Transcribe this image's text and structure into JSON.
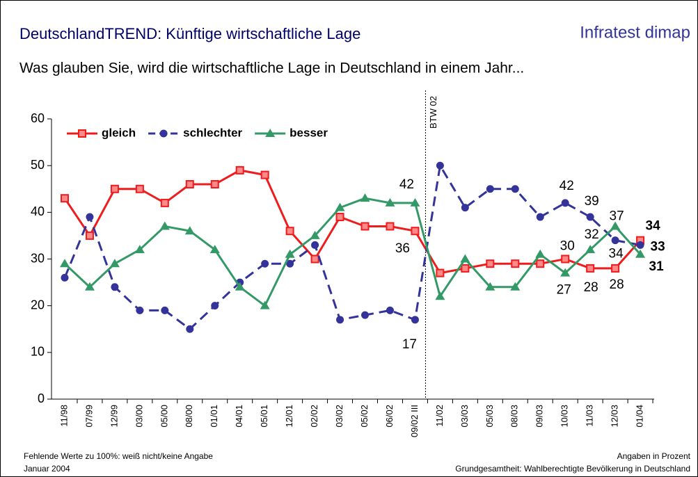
{
  "chart_data": {
    "type": "line",
    "title": "DeutschlandTREND: Künftige wirtschaftliche Lage",
    "brand": "Infratest dimap",
    "subtitle": "Was glauben Sie, wird die wirtschaftliche Lage in Deutschland in einem Jahr...",
    "annotation": "BTW 02",
    "footnotes": [
      "Fehlende Werte zu 100%: weiß nicht/keine Angabe",
      "Januar 2004"
    ],
    "source": [
      "Angaben in Prozent",
      "Grundgesamtheit: Wahlberechtigte Bevölkerung in Deutschland"
    ],
    "categories": [
      "11/98",
      "07/99",
      "12/99",
      "03/00",
      "05/00",
      "08/00",
      "01/01",
      "04/01",
      "05/01",
      "12/01",
      "02/02",
      "03/02",
      "05/02",
      "06/02",
      "09/02 III",
      "11/02",
      "03/03",
      "05/03",
      "08/03",
      "09/03",
      "10/03",
      "11/03",
      "12/03",
      "01/04"
    ],
    "series": [
      {
        "name": "gleich",
        "color": "#ee1c1c",
        "marker": "square",
        "line_style": "solid",
        "values": [
          43,
          35,
          45,
          45,
          42,
          46,
          46,
          49,
          48,
          36,
          30,
          39,
          37,
          37,
          36,
          27,
          28,
          29,
          29,
          29,
          30,
          28,
          28,
          34
        ]
      },
      {
        "name": "schlechter",
        "color": "#333399",
        "marker": "circle",
        "line_style": "dashed",
        "values": [
          26,
          39,
          24,
          19,
          19,
          15,
          20,
          25,
          29,
          29,
          33,
          17,
          18,
          19,
          17,
          50,
          41,
          45,
          45,
          39,
          42,
          39,
          34,
          33
        ]
      },
      {
        "name": "besser",
        "color": "#339966",
        "marker": "triangle",
        "line_style": "solid",
        "values": [
          29,
          24,
          29,
          32,
          37,
          36,
          32,
          24,
          20,
          31,
          35,
          41,
          43,
          42,
          42,
          22,
          30,
          24,
          24,
          31,
          27,
          32,
          37,
          31
        ]
      }
    ],
    "ylim": [
      0,
      60
    ],
    "yticks": [
      0,
      10,
      20,
      30,
      40,
      50,
      60
    ],
    "legend": "top-left",
    "grid": false
  }
}
